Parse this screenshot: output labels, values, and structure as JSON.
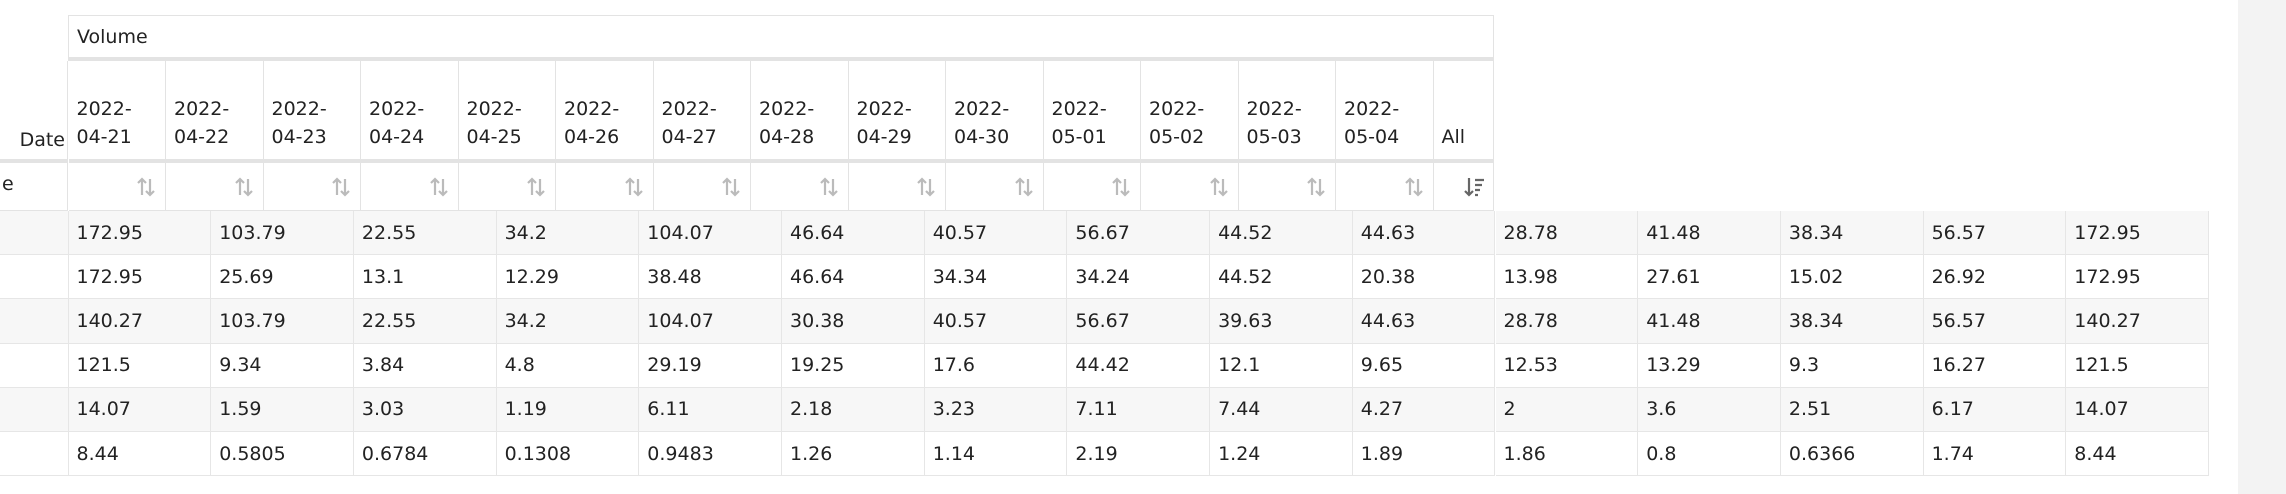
{
  "header": {
    "group": "Volume",
    "index_label": "Date",
    "filter_label": "e",
    "columns": [
      "2022-04-21",
      "2022-04-22",
      "2022-04-23",
      "2022-04-24",
      "2022-04-25",
      "2022-04-26",
      "2022-04-27",
      "2022-04-28",
      "2022-04-29",
      "2022-04-30",
      "2022-05-01",
      "2022-05-02",
      "2022-05-03",
      "2022-05-04",
      "All"
    ]
  },
  "rows": [
    [
      172.95,
      103.79,
      22.55,
      34.2,
      104.07,
      46.64,
      40.57,
      56.67,
      44.52,
      44.63,
      28.78,
      41.48,
      38.34,
      56.57,
      172.95
    ],
    [
      172.95,
      25.69,
      13.1,
      12.29,
      38.48,
      46.64,
      34.34,
      34.24,
      44.52,
      20.38,
      13.98,
      27.61,
      15.02,
      26.92,
      172.95
    ],
    [
      140.27,
      103.79,
      22.55,
      34.2,
      104.07,
      30.38,
      40.57,
      56.67,
      39.63,
      44.63,
      28.78,
      41.48,
      38.34,
      56.57,
      140.27
    ],
    [
      121.5,
      9.34,
      3.84,
      4.8,
      29.19,
      19.25,
      17.6,
      44.42,
      12.1,
      9.65,
      12.53,
      13.29,
      9.3,
      16.27,
      121.5
    ],
    [
      14.07,
      1.59,
      3.03,
      1.19,
      6.11,
      2.18,
      3.23,
      7.11,
      7.44,
      4.27,
      2,
      3.6,
      2.51,
      6.17,
      14.07
    ],
    [
      8.44,
      0.5805,
      0.6784,
      0.1308,
      0.9483,
      1.26,
      1.14,
      2.19,
      1.24,
      1.89,
      1.86,
      0.8,
      0.6366,
      1.74,
      8.44
    ]
  ]
}
